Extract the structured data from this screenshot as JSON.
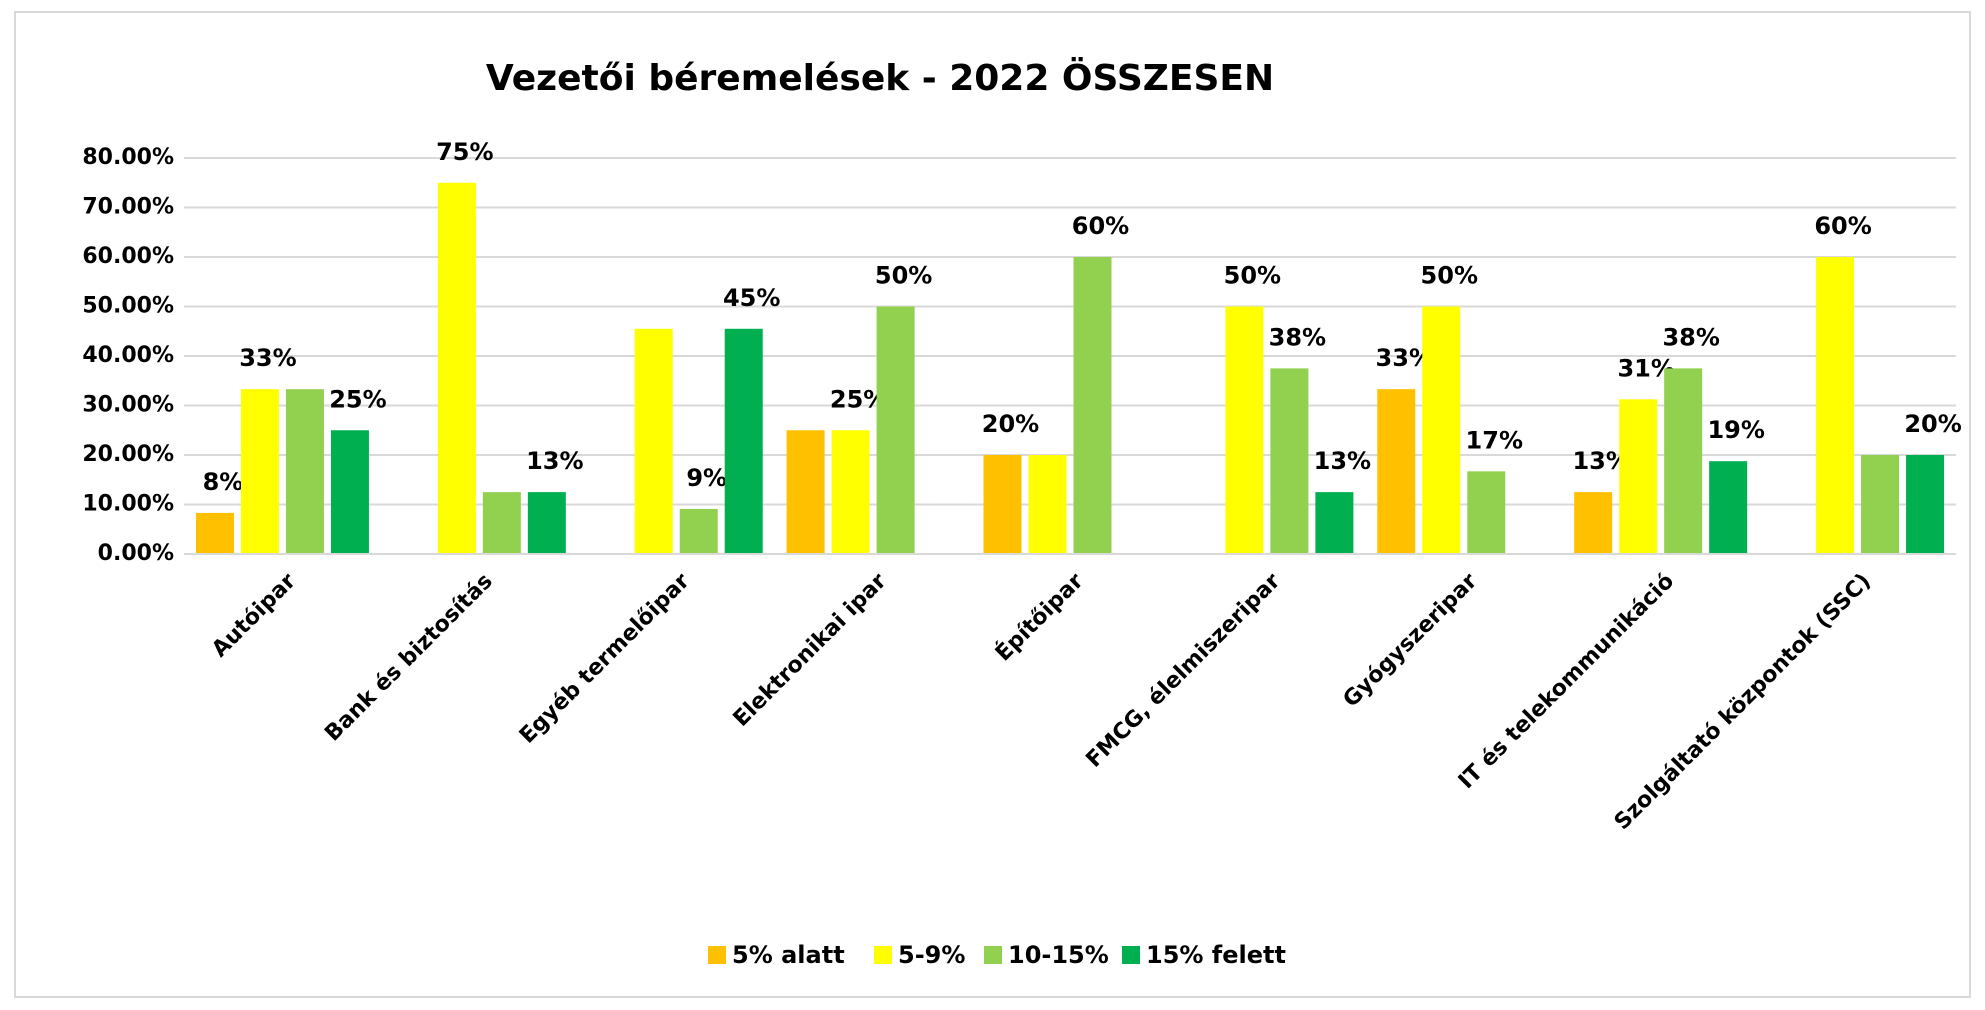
{
  "chart_data": {
    "type": "bar",
    "title": "Vezetői béremelések - 2022 ÖSSZESEN",
    "categories": [
      "Autóipar",
      "Bank és biztosítás",
      "Egyéb termelőipar",
      "Elektronikai ipar",
      "Építőipar",
      "FMCG, élelmiszeripar",
      "Gyógyszeripar",
      "IT és telekommunikáció",
      "Szolgáltató központok (SSC)"
    ],
    "series": [
      {
        "name": "5% alatt",
        "color": "#ffc000",
        "values": [
          8.3,
          0,
          0,
          25,
          20,
          0,
          33.3,
          12.5,
          0
        ],
        "value_labels": [
          "8%",
          null,
          null,
          null,
          "20%",
          null,
          "33%",
          "13%",
          null
        ]
      },
      {
        "name": "5-9%",
        "color": "#ffff00",
        "values": [
          33.3,
          75,
          45.5,
          25,
          20,
          50,
          50,
          31.25,
          60
        ],
        "value_labels": [
          "33%",
          "75%",
          null,
          "25%",
          null,
          "50%",
          "50%",
          "31%",
          "60%"
        ]
      },
      {
        "name": "10-15%",
        "color": "#92d050",
        "values": [
          33.3,
          12.5,
          9.1,
          50,
          60,
          37.5,
          16.7,
          37.5,
          20
        ],
        "value_labels": [
          null,
          null,
          "9%",
          "50%",
          "60%",
          "38%",
          "17%",
          "38%",
          null
        ]
      },
      {
        "name": "15% felett",
        "color": "#00b050",
        "values": [
          25,
          12.5,
          45.5,
          0,
          0,
          12.5,
          0,
          18.75,
          20
        ],
        "value_labels": [
          "25%",
          "13%",
          "45%",
          null,
          null,
          "13%",
          null,
          "19%",
          "20%"
        ]
      }
    ],
    "ylim": [
      0,
      80
    ],
    "yticks": [
      {
        "value": 0,
        "label": "0.00%"
      },
      {
        "value": 10,
        "label": "10.00%"
      },
      {
        "value": 20,
        "label": "20.00%"
      },
      {
        "value": 30,
        "label": "30.00%"
      },
      {
        "value": 40,
        "label": "40.00%"
      },
      {
        "value": 50,
        "label": "50.00%"
      },
      {
        "value": 60,
        "label": "60.00%"
      },
      {
        "value": 70,
        "label": "70.00%"
      },
      {
        "value": 80,
        "label": "80.00%"
      }
    ],
    "grid": true,
    "legend": "bottom"
  }
}
